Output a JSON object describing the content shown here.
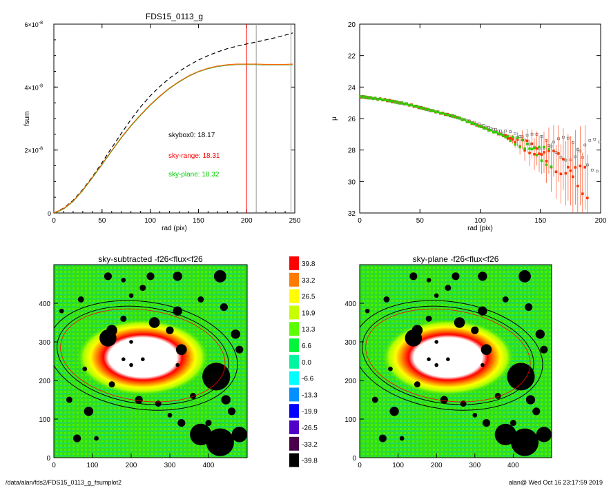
{
  "footer": {
    "path": "/data/alan/fds2/FDS15_0113_g_fsumplot2",
    "user_time": "alan@  Wed Oct 16 23:17:59 2019"
  },
  "chart_data": [
    {
      "type": "line",
      "title": "FDS15_0113_g",
      "xlabel": "rad (pix)",
      "ylabel": "fsum",
      "xlim": [
        0,
        250
      ],
      "ylim": [
        0,
        6e-08
      ],
      "xticks": [
        "0",
        "50",
        "100",
        "150",
        "200",
        "250"
      ],
      "yticks": [
        {
          "v": 0,
          "label": "0"
        },
        {
          "v": 2e-08,
          "label": "2×10",
          "exp": "-8"
        },
        {
          "v": 4e-08,
          "label": "4×10",
          "exp": "-8"
        },
        {
          "v": 6e-08,
          "label": "6×10",
          "exp": "-8"
        }
      ],
      "annotations": [
        {
          "text": "skybox0: 18.17",
          "color": "#000000"
        },
        {
          "text": "sky-range: 18.31",
          "color": "#ff0000"
        },
        {
          "text": "sky-plane: 18.32",
          "color": "#00cc00"
        }
      ],
      "vlines": [
        {
          "x": 200,
          "color": "#ff0000"
        },
        {
          "x": 210,
          "color": "#999999"
        },
        {
          "x": 246,
          "color": "#999999"
        }
      ],
      "series": [
        {
          "style": "dashed",
          "color": "#000000",
          "x": [
            0,
            10,
            20,
            30,
            40,
            50,
            60,
            70,
            80,
            90,
            100,
            110,
            120,
            130,
            140,
            150,
            160,
            170,
            180,
            190,
            200,
            210,
            220,
            230,
            240,
            248
          ],
          "y": [
            0,
            1.5e-09,
            4e-09,
            7.5e-09,
            1.15e-08,
            1.6e-08,
            2.07e-08,
            2.53e-08,
            2.97e-08,
            3.37e-08,
            3.72e-08,
            4.02e-08,
            4.28e-08,
            4.5e-08,
            4.69e-08,
            4.86e-08,
            5e-08,
            5.12e-08,
            5.22e-08,
            5.3e-08,
            5.37e-08,
            5.43e-08,
            5.5e-08,
            5.57e-08,
            5.65e-08,
            5.72e-08
          ]
        },
        {
          "style": "solid",
          "color": "#ff6600",
          "x": [
            0,
            10,
            20,
            30,
            40,
            50,
            60,
            70,
            80,
            90,
            100,
            110,
            120,
            130,
            140,
            150,
            160,
            170,
            180,
            190,
            200,
            210,
            220,
            230,
            240,
            248
          ],
          "y": [
            0,
            1.4e-09,
            3.8e-09,
            7.3e-09,
            1.13e-08,
            1.55e-08,
            1.98e-08,
            2.4e-08,
            2.78e-08,
            3.12e-08,
            3.44e-08,
            3.72e-08,
            3.97e-08,
            4.18e-08,
            4.36e-08,
            4.5e-08,
            4.6e-08,
            4.67e-08,
            4.71e-08,
            4.73e-08,
            4.73e-08,
            4.73e-08,
            4.72e-08,
            4.72e-08,
            4.72e-08,
            4.73e-08
          ]
        }
      ]
    },
    {
      "type": "scatter",
      "xlabel": "rad (pix)",
      "ylabel": "μ",
      "xlim": [
        0,
        200
      ],
      "ylim": [
        32,
        20
      ],
      "xticks": [
        "0",
        "50",
        "100",
        "150",
        "200"
      ],
      "yticks": [
        "20",
        "22",
        "24",
        "26",
        "28",
        "30",
        "32"
      ],
      "series": [
        {
          "color": "#555555",
          "x": [
            0,
            20,
            40,
            60,
            80,
            100,
            120,
            140,
            160,
            180,
            200
          ],
          "y": [
            24.6,
            24.8,
            25.1,
            25.5,
            25.9,
            26.4,
            26.9,
            27.3,
            27.7,
            28.1,
            28.4
          ]
        },
        {
          "color": "#ff3300",
          "x": [
            0,
            20,
            40,
            60,
            80,
            100,
            120,
            140,
            160,
            170,
            180,
            190
          ],
          "y": [
            24.6,
            24.8,
            25.1,
            25.5,
            25.9,
            26.5,
            27.1,
            27.8,
            28.6,
            29.1,
            29.6,
            30.2
          ]
        },
        {
          "color": "#33cc00",
          "x": [
            0,
            20,
            40,
            60,
            80,
            100,
            120,
            140,
            160
          ],
          "y": [
            24.6,
            24.8,
            25.1,
            25.5,
            25.9,
            26.5,
            27.1,
            27.8,
            28.6
          ]
        }
      ]
    },
    {
      "type": "heatmap",
      "title": "sky-subtracted -f26<flux<f26",
      "xlim": [
        0,
        500
      ],
      "ylim": [
        0,
        500
      ],
      "xticks": [
        "0",
        "100",
        "200",
        "300",
        "400"
      ],
      "yticks": [
        "0",
        "100",
        "200",
        "300",
        "400"
      ]
    },
    {
      "type": "heatmap",
      "title": "sky-plane -f26<flux<f26",
      "xlim": [
        0,
        500
      ],
      "ylim": [
        0,
        500
      ],
      "xticks": [
        "0",
        "100",
        "200",
        "300",
        "400"
      ],
      "yticks": [
        "0",
        "100",
        "200",
        "300",
        "400"
      ]
    },
    {
      "type": "colorbar",
      "levels": [
        {
          "label": "39.8",
          "color": "#ff0000"
        },
        {
          "label": "33.2",
          "color": "#ff7a00"
        },
        {
          "label": "26.5",
          "color": "#ffff00"
        },
        {
          "label": "19.9",
          "color": "#c8ff00"
        },
        {
          "label": "13.3",
          "color": "#5cff00"
        },
        {
          "label": "6.6",
          "color": "#00f53a"
        },
        {
          "label": "0.0",
          "color": "#00f5a0"
        },
        {
          "label": "-6.6",
          "color": "#00ffff"
        },
        {
          "label": "-13.3",
          "color": "#0090ff"
        },
        {
          "label": "-19.9",
          "color": "#0000ff"
        },
        {
          "label": "-26.5",
          "color": "#5000c8"
        },
        {
          "label": "-33.2",
          "color": "#4a004a"
        },
        {
          "label": "-39.8",
          "color": "#000000"
        }
      ]
    }
  ]
}
